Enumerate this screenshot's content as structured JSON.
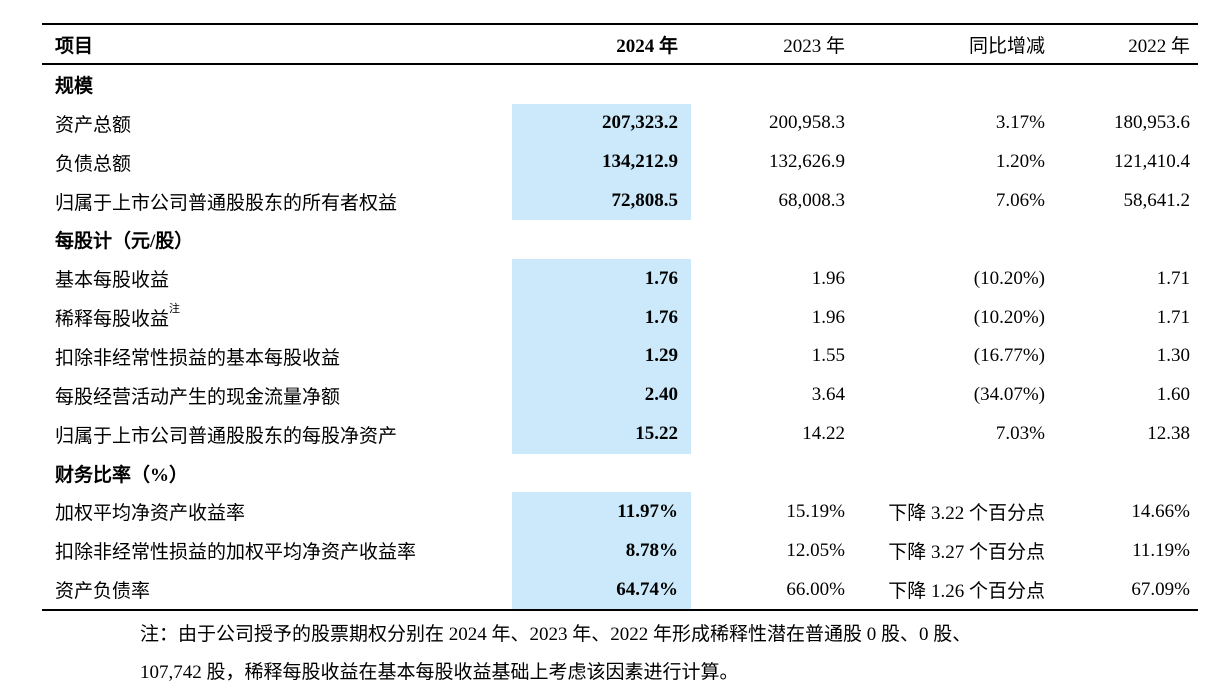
{
  "accent_color": "#CBE9FA",
  "table": {
    "columns": [
      {
        "label": "项目"
      },
      {
        "label": "2024 年"
      },
      {
        "label": "2023 年"
      },
      {
        "label": "同比增减"
      },
      {
        "label": "2022 年"
      }
    ],
    "rows": [
      {
        "type": "section",
        "label": "规模"
      },
      {
        "type": "data",
        "label": "资产总额",
        "v2024": "207,323.2",
        "v2023": "200,958.3",
        "yoy": "3.17%",
        "v2022": "180,953.6"
      },
      {
        "type": "data",
        "label": "负债总额",
        "v2024": "134,212.9",
        "v2023": "132,626.9",
        "yoy": "1.20%",
        "v2022": "121,410.4"
      },
      {
        "type": "data",
        "label": "归属于上市公司普通股股东的所有者权益",
        "v2024": "72,808.5",
        "v2023": "68,008.3",
        "yoy": "7.06%",
        "v2022": "58,641.2"
      },
      {
        "type": "section",
        "label": "每股计（元/股）"
      },
      {
        "type": "data",
        "label": "基本每股收益",
        "v2024": "1.76",
        "v2023": "1.96",
        "yoy": "(10.20%)",
        "v2022": "1.71"
      },
      {
        "type": "data",
        "label": "稀释每股收益",
        "sup": "注",
        "v2024": "1.76",
        "v2023": "1.96",
        "yoy": "(10.20%)",
        "v2022": "1.71"
      },
      {
        "type": "data",
        "label": "扣除非经常性损益的基本每股收益",
        "v2024": "1.29",
        "v2023": "1.55",
        "yoy": "(16.77%)",
        "v2022": "1.30"
      },
      {
        "type": "data",
        "label": "每股经营活动产生的现金流量净额",
        "v2024": "2.40",
        "v2023": "3.64",
        "yoy": "(34.07%)",
        "v2022": "1.60"
      },
      {
        "type": "data",
        "label": "归属于上市公司普通股股东的每股净资产",
        "v2024": "15.22",
        "v2023": "14.22",
        "yoy": "7.03%",
        "v2022": "12.38"
      },
      {
        "type": "section",
        "label": "财务比率（%）"
      },
      {
        "type": "data",
        "label": "加权平均净资产收益率",
        "v2024": "11.97%",
        "v2023": "15.19%",
        "yoy": "下降 3.22 个百分点",
        "v2022": "14.66%"
      },
      {
        "type": "data",
        "label": "扣除非经常性损益的加权平均净资产收益率",
        "v2024": "8.78%",
        "v2023": "12.05%",
        "yoy": "下降 3.27 个百分点",
        "v2022": "11.19%"
      },
      {
        "type": "data",
        "label": "资产负债率",
        "v2024": "64.74%",
        "v2023": "66.00%",
        "yoy": "下降 1.26 个百分点",
        "v2022": "67.09%"
      }
    ]
  },
  "footnote": {
    "line1": "注：由于公司授予的股票期权分别在 2024 年、2023 年、2022 年形成稀释性潜在普通股 0 股、0 股、",
    "line2": "107,742 股，稀释每股收益在基本每股收益基础上考虑该因素进行计算。"
  }
}
